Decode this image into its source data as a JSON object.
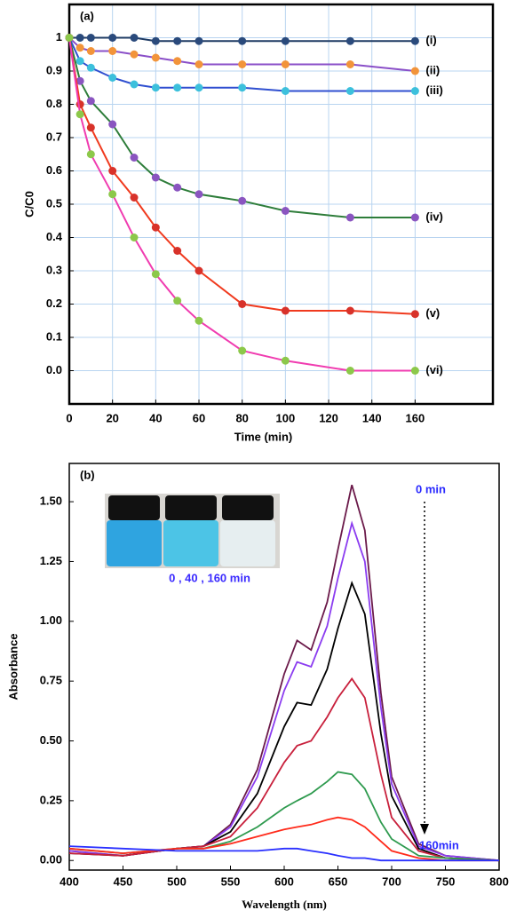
{
  "chart_data": [
    {
      "type": "line",
      "panel_label": "(a)",
      "x_label": "Time (min)",
      "y_label": "C/C0",
      "x": [
        0,
        5,
        10,
        20,
        30,
        40,
        50,
        60,
        80,
        100,
        130,
        160
      ],
      "xlim": [
        0,
        196
      ],
      "ylim": [
        -0.1,
        1.1
      ],
      "xticks": [
        0,
        20,
        40,
        60,
        80,
        100,
        120,
        140,
        160
      ],
      "yticks": [
        {
          "value": 0,
          "label": "0.0"
        },
        0.1,
        0.2,
        0.3,
        0.4,
        0.5,
        0.6,
        0.7,
        0.8,
        0.9,
        1
      ],
      "grid": true,
      "markers": true,
      "series": [
        {
          "name": "(i)",
          "color": "#1f3b64",
          "marker_color": "#2a4a7c",
          "values": [
            1.0,
            1.0,
            1.0,
            1.0,
            1.0,
            0.99,
            0.99,
            0.99,
            0.99,
            0.99,
            0.99,
            0.99
          ]
        },
        {
          "name": "(ii)",
          "color": "#8a4fc8",
          "marker_color": "#f2943a",
          "values": [
            1.0,
            0.97,
            0.96,
            0.96,
            0.95,
            0.94,
            0.93,
            0.92,
            0.92,
            0.92,
            0.92,
            0.9
          ]
        },
        {
          "name": "(iii)",
          "color": "#2f4fd0",
          "marker_color": "#3cc0dc",
          "values": [
            1.0,
            0.93,
            0.91,
            0.88,
            0.86,
            0.85,
            0.85,
            0.85,
            0.85,
            0.84,
            0.84,
            0.84
          ]
        },
        {
          "name": "(iv)",
          "color": "#2e7d3a",
          "marker_color": "#8a55c0",
          "values": [
            1.0,
            0.87,
            0.81,
            0.74,
            0.64,
            0.58,
            0.55,
            0.53,
            0.51,
            0.48,
            0.46,
            0.46
          ]
        },
        {
          "name": "(v)",
          "color": "#f03a1e",
          "marker_color": "#d8322a",
          "values": [
            1.0,
            0.8,
            0.73,
            0.6,
            0.52,
            0.43,
            0.36,
            0.3,
            0.2,
            0.18,
            0.18,
            0.17
          ]
        },
        {
          "name": "(vi)",
          "color": "#f03cb0",
          "marker_color": "#8cc84a",
          "values": [
            1.0,
            0.77,
            0.65,
            0.53,
            0.4,
            0.29,
            0.21,
            0.15,
            0.06,
            0.03,
            0.0,
            0.0
          ]
        }
      ]
    },
    {
      "type": "line",
      "panel_label": "(b)",
      "x_label": "Wavelength (nm)",
      "y_label": "Absorbance",
      "annotations": [
        "0 min",
        "160min",
        "0 , 40 , 160 min"
      ],
      "x": [
        400,
        450,
        500,
        525,
        550,
        575,
        600,
        612,
        625,
        640,
        650,
        663,
        675,
        690,
        700,
        725,
        750,
        800
      ],
      "xlim": [
        400,
        800
      ],
      "ylim": [
        -0.04,
        1.66
      ],
      "xticks": [
        400,
        450,
        500,
        550,
        600,
        650,
        700,
        750,
        800
      ],
      "yticks": [
        {
          "value": 0,
          "label": "0.00"
        },
        0.25,
        {
          "value": 0.5,
          "label": "0.50"
        },
        0.75,
        {
          "value": 1,
          "label": "1.00"
        },
        1.25,
        {
          "value": 1.5,
          "label": "1.50"
        }
      ],
      "grid": false,
      "markers": false,
      "series": [
        {
          "color": "#6b1a4a",
          "values": [
            0.04,
            0.02,
            0.05,
            0.06,
            0.15,
            0.38,
            0.78,
            0.92,
            0.88,
            1.08,
            1.3,
            1.57,
            1.38,
            0.7,
            0.35,
            0.07,
            0.02,
            0.0
          ]
        },
        {
          "color": "#8b3cf0",
          "values": [
            0.04,
            0.02,
            0.05,
            0.06,
            0.14,
            0.35,
            0.71,
            0.83,
            0.81,
            0.98,
            1.18,
            1.41,
            1.25,
            0.64,
            0.32,
            0.06,
            0.02,
            0.0
          ]
        },
        {
          "color": "#000000",
          "values": [
            0.03,
            0.02,
            0.05,
            0.06,
            0.12,
            0.28,
            0.56,
            0.66,
            0.65,
            0.8,
            0.97,
            1.16,
            1.03,
            0.53,
            0.27,
            0.05,
            0.01,
            0.0
          ]
        },
        {
          "color": "#c8203c",
          "values": [
            0.03,
            0.02,
            0.05,
            0.06,
            0.1,
            0.22,
            0.41,
            0.48,
            0.5,
            0.6,
            0.68,
            0.76,
            0.68,
            0.36,
            0.18,
            0.04,
            0.01,
            0.0
          ]
        },
        {
          "color": "#2e9a4e",
          "values": [
            0.05,
            0.03,
            0.05,
            0.05,
            0.08,
            0.14,
            0.22,
            0.25,
            0.28,
            0.33,
            0.37,
            0.36,
            0.3,
            0.16,
            0.09,
            0.02,
            0.01,
            0.0
          ]
        },
        {
          "color": "#ff2a1a",
          "values": [
            0.05,
            0.03,
            0.05,
            0.05,
            0.07,
            0.1,
            0.13,
            0.14,
            0.15,
            0.17,
            0.18,
            0.17,
            0.14,
            0.08,
            0.04,
            0.01,
            0.0,
            0.0
          ]
        },
        {
          "color": "#2a30ff",
          "values": [
            0.06,
            0.05,
            0.04,
            0.04,
            0.04,
            0.04,
            0.05,
            0.05,
            0.04,
            0.03,
            0.02,
            0.01,
            0.01,
            0.0,
            0.0,
            0.0,
            0.0,
            0.0
          ]
        }
      ]
    }
  ]
}
